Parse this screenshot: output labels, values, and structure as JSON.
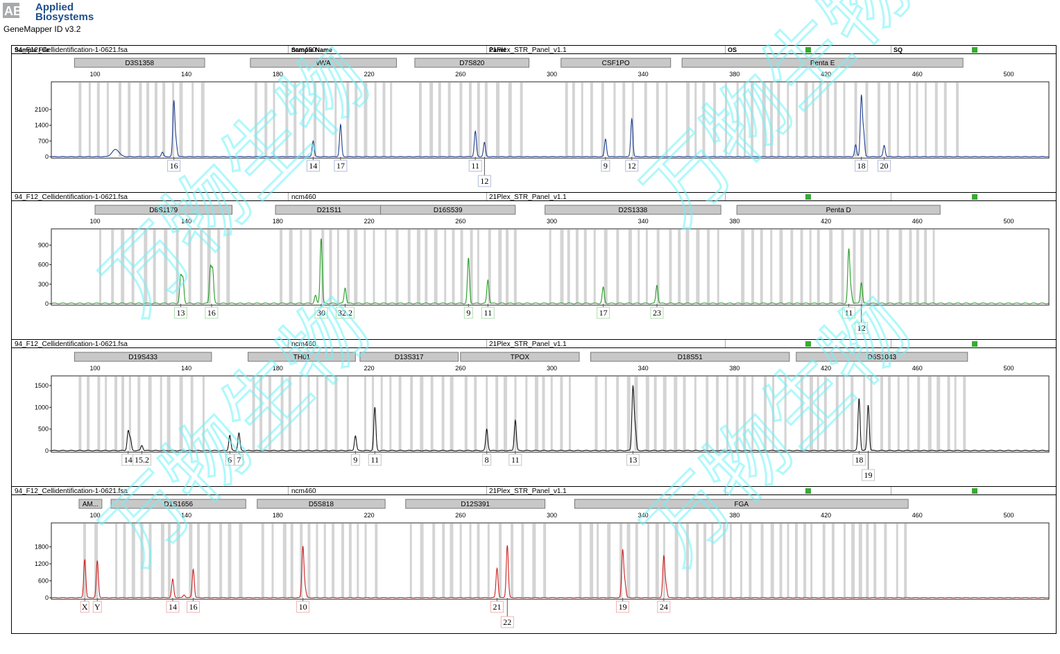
{
  "app": {
    "brand_line1": "Applied",
    "brand_line2": "Biosystems",
    "brand_color": "#1f4e8c",
    "version": "GeneMapper ID v3.2"
  },
  "table_header": {
    "sample_file": "Sample File",
    "sample_name": "Sample Name",
    "panel": "Panel",
    "os": "OS",
    "sq": "SQ"
  },
  "watermark": {
    "text": "万物生物",
    "color": "#6ff3f8"
  },
  "chart_data": [
    {
      "type": "line",
      "sample_file": "94_F12_Cellidentification-1-0621.fsa",
      "sample_name": "ncm460",
      "panel": "21Plex_STR_Panel_v1.1",
      "color": "#1f3e8f",
      "xlim": [
        88,
        530
      ],
      "x_ticks": [
        "100",
        "140",
        "180",
        "220",
        "260",
        "300",
        "340",
        "380",
        "420",
        "460",
        "500"
      ],
      "ylim": [
        0,
        2900
      ],
      "y_ticks": [
        0,
        700,
        1400,
        2100
      ],
      "markers": [
        {
          "name": "D3S1358",
          "start": 91,
          "end": 148
        },
        {
          "name": "vWA",
          "start": 168,
          "end": 232
        },
        {
          "name": "D7S820",
          "start": 240,
          "end": 290
        },
        {
          "name": "CSF1PO",
          "start": 304,
          "end": 352
        },
        {
          "name": "Penta E",
          "start": 357,
          "end": 480
        }
      ],
      "peaks": [
        {
          "x": 109,
          "y": 320,
          "w": 1.5
        },
        {
          "x": 129.5,
          "y": 200,
          "w": 0.45
        },
        {
          "x": 134.5,
          "y": 2450,
          "w": 0.45
        },
        {
          "x": 135.5,
          "y": 580,
          "w": 0.45
        },
        {
          "x": 195.5,
          "y": 700,
          "w": 0.45
        },
        {
          "x": 207.5,
          "y": 1420,
          "w": 0.45
        },
        {
          "x": 266.5,
          "y": 1130,
          "w": 0.45
        },
        {
          "x": 270.5,
          "y": 630,
          "w": 0.45
        },
        {
          "x": 323.5,
          "y": 780,
          "w": 0.45
        },
        {
          "x": 335,
          "y": 1680,
          "w": 0.45
        },
        {
          "x": 433,
          "y": 520,
          "w": 0.45
        },
        {
          "x": 435.5,
          "y": 2650,
          "w": 0.45
        },
        {
          "x": 436.5,
          "y": 1000,
          "w": 0.45
        },
        {
          "x": 445.5,
          "y": 500,
          "w": 0.45
        }
      ],
      "allele_calls": [
        {
          "label": "16",
          "x": 134.5,
          "row": 0
        },
        {
          "label": "14",
          "x": 195.5,
          "row": 0
        },
        {
          "label": "17",
          "x": 207.5,
          "row": 0
        },
        {
          "label": "11",
          "x": 266.5,
          "row": 0
        },
        {
          "label": "12",
          "x": 270.5,
          "row": 1
        },
        {
          "label": "9",
          "x": 323.5,
          "row": 0
        },
        {
          "label": "12",
          "x": 335,
          "row": 0
        },
        {
          "label": "18",
          "x": 435.5,
          "row": 0
        },
        {
          "label": "20",
          "x": 445.5,
          "row": 0
        }
      ],
      "os_ok": true,
      "sq_ok": true
    },
    {
      "type": "line",
      "sample_file": "94_F12_Cellidentification-1-0621.fsa",
      "sample_name": "ncm460",
      "panel": "21Plex_STR_Panel_v1.1",
      "color": "#239c23",
      "xlim": [
        88,
        530
      ],
      "x_ticks": [
        "100",
        "140",
        "180",
        "220",
        "260",
        "300",
        "340",
        "380",
        "420",
        "460",
        "500"
      ],
      "ylim": [
        0,
        1000
      ],
      "y_ticks": [
        0,
        300,
        600,
        900
      ],
      "markers": [
        {
          "name": "D8S1179",
          "start": 100,
          "end": 160
        },
        {
          "name": "D21S11",
          "start": 179,
          "end": 226
        },
        {
          "name": "D16S539",
          "start": 225,
          "end": 284
        },
        {
          "name": "D2S1338",
          "start": 297,
          "end": 374
        },
        {
          "name": "Penta D",
          "start": 381,
          "end": 470
        }
      ],
      "peaks": [
        {
          "x": 137.5,
          "y": 400,
          "w": 0.45
        },
        {
          "x": 138.5,
          "y": 370,
          "w": 0.45
        },
        {
          "x": 150.5,
          "y": 540,
          "w": 0.45
        },
        {
          "x": 151.5,
          "y": 500,
          "w": 0.45
        },
        {
          "x": 196.5,
          "y": 120,
          "w": 0.45
        },
        {
          "x": 199,
          "y": 1000,
          "w": 0.45
        },
        {
          "x": 209.5,
          "y": 240,
          "w": 0.45
        },
        {
          "x": 263.5,
          "y": 690,
          "w": 0.45
        },
        {
          "x": 272,
          "y": 360,
          "w": 0.45
        },
        {
          "x": 322.5,
          "y": 245,
          "w": 0.45
        },
        {
          "x": 346,
          "y": 280,
          "w": 0.45
        },
        {
          "x": 430,
          "y": 820,
          "w": 0.45
        },
        {
          "x": 431,
          "y": 180,
          "w": 0.45
        },
        {
          "x": 435.5,
          "y": 320,
          "w": 0.45
        }
      ],
      "allele_calls": [
        {
          "label": "13",
          "x": 137.5,
          "row": 0
        },
        {
          "label": "16",
          "x": 151,
          "row": 0
        },
        {
          "label": "30",
          "x": 199,
          "row": 0
        },
        {
          "label": "32.2",
          "x": 209.5,
          "row": 0
        },
        {
          "label": "9",
          "x": 263.5,
          "row": 0
        },
        {
          "label": "11",
          "x": 272,
          "row": 0
        },
        {
          "label": "17",
          "x": 322.5,
          "row": 0
        },
        {
          "label": "23",
          "x": 346,
          "row": 0
        },
        {
          "label": "11",
          "x": 430,
          "row": 0
        },
        {
          "label": "12",
          "x": 435.5,
          "row": 1
        }
      ],
      "os_ok": true,
      "sq_ok": true
    },
    {
      "type": "line",
      "sample_file": "94_F12_Cellidentification-1-0621.fsa",
      "sample_name": "ncm460",
      "panel": "21Plex_STR_Panel_v1.1",
      "color": "#111111",
      "xlim": [
        88,
        530
      ],
      "x_ticks": [
        "100",
        "140",
        "180",
        "220",
        "260",
        "300",
        "340",
        "380",
        "420",
        "460",
        "500"
      ],
      "ylim": [
        0,
        1500
      ],
      "y_ticks": [
        0,
        500,
        1000,
        1500
      ],
      "markers": [
        {
          "name": "D19S433",
          "start": 91,
          "end": 151
        },
        {
          "name": "TH01",
          "start": 167,
          "end": 214
        },
        {
          "name": "D13S317",
          "start": 216,
          "end": 259
        },
        {
          "name": "TPOX",
          "start": 260,
          "end": 312
        },
        {
          "name": "D18S51",
          "start": 317,
          "end": 404
        },
        {
          "name": "D6S1043",
          "start": 407,
          "end": 482
        }
      ],
      "peaks": [
        {
          "x": 114.5,
          "y": 440,
          "w": 0.45
        },
        {
          "x": 115.5,
          "y": 250,
          "w": 0.45
        },
        {
          "x": 120.5,
          "y": 120,
          "w": 0.45
        },
        {
          "x": 159,
          "y": 350,
          "w": 0.45
        },
        {
          "x": 163,
          "y": 400,
          "w": 0.45
        },
        {
          "x": 214,
          "y": 340,
          "w": 0.45
        },
        {
          "x": 222.5,
          "y": 990,
          "w": 0.45
        },
        {
          "x": 271.5,
          "y": 490,
          "w": 0.45
        },
        {
          "x": 284,
          "y": 700,
          "w": 0.45
        },
        {
          "x": 335.5,
          "y": 1450,
          "w": 0.45
        },
        {
          "x": 336.5,
          "y": 500,
          "w": 0.45
        },
        {
          "x": 434.5,
          "y": 1200,
          "w": 0.45
        },
        {
          "x": 438.5,
          "y": 1050,
          "w": 0.45
        }
      ],
      "allele_calls": [
        {
          "label": "14",
          "x": 114.5,
          "row": 0
        },
        {
          "label": "15.2",
          "x": 120.5,
          "row": 0
        },
        {
          "label": "6",
          "x": 159,
          "row": 0
        },
        {
          "label": "7",
          "x": 163,
          "row": 0
        },
        {
          "label": "9",
          "x": 214,
          "row": 0
        },
        {
          "label": "11",
          "x": 222.5,
          "row": 0
        },
        {
          "label": "8",
          "x": 271.5,
          "row": 0
        },
        {
          "label": "11",
          "x": 284,
          "row": 0
        },
        {
          "label": "13",
          "x": 335.5,
          "row": 0
        },
        {
          "label": "18",
          "x": 434.5,
          "row": 0
        },
        {
          "label": "19",
          "x": 438.5,
          "row": 1
        }
      ],
      "os_ok": true,
      "sq_ok": true
    },
    {
      "type": "line",
      "sample_file": "94_F12_Cellidentification-1-0621.fsa",
      "sample_name": "ncm460",
      "panel": "21Plex_STR_Panel_v1.1",
      "color": "#cc1f1f",
      "xlim": [
        88,
        530
      ],
      "x_ticks": [
        "100",
        "140",
        "180",
        "220",
        "260",
        "300",
        "340",
        "380",
        "420",
        "460",
        "500"
      ],
      "ylim": [
        0,
        2300
      ],
      "y_ticks": [
        0,
        600,
        1200,
        1800
      ],
      "markers": [
        {
          "name": "AM...",
          "start": 93,
          "end": 103
        },
        {
          "name": "D1S1656",
          "start": 107,
          "end": 166
        },
        {
          "name": "D5S818",
          "start": 171,
          "end": 227
        },
        {
          "name": "D12S391",
          "start": 236,
          "end": 297
        },
        {
          "name": "FGA",
          "start": 310,
          "end": 456
        }
      ],
      "peaks": [
        {
          "x": 95.5,
          "y": 1350,
          "w": 0.45
        },
        {
          "x": 101,
          "y": 1300,
          "w": 0.45
        },
        {
          "x": 134,
          "y": 650,
          "w": 0.45
        },
        {
          "x": 139,
          "y": 100,
          "w": 0.45
        },
        {
          "x": 143,
          "y": 1000,
          "w": 0.45
        },
        {
          "x": 191,
          "y": 1800,
          "w": 0.45
        },
        {
          "x": 192,
          "y": 300,
          "w": 0.45
        },
        {
          "x": 276,
          "y": 1040,
          "w": 0.45
        },
        {
          "x": 280.5,
          "y": 1850,
          "w": 0.45
        },
        {
          "x": 331,
          "y": 1650,
          "w": 0.45
        },
        {
          "x": 332,
          "y": 500,
          "w": 0.45
        },
        {
          "x": 349,
          "y": 1440,
          "w": 0.45
        },
        {
          "x": 350,
          "y": 400,
          "w": 0.45
        }
      ],
      "allele_calls": [
        {
          "label": "X",
          "x": 95.5,
          "row": 0
        },
        {
          "label": "Y",
          "x": 101,
          "row": 0
        },
        {
          "label": "14",
          "x": 134,
          "row": 0
        },
        {
          "label": "16",
          "x": 143,
          "row": 0
        },
        {
          "label": "10",
          "x": 191,
          "row": 0
        },
        {
          "label": "21",
          "x": 276,
          "row": 0
        },
        {
          "label": "22",
          "x": 280.5,
          "row": 1
        },
        {
          "label": "19",
          "x": 331,
          "row": 0
        },
        {
          "label": "24",
          "x": 349,
          "row": 0
        }
      ],
      "os_ok": true,
      "sq_ok": true
    }
  ]
}
